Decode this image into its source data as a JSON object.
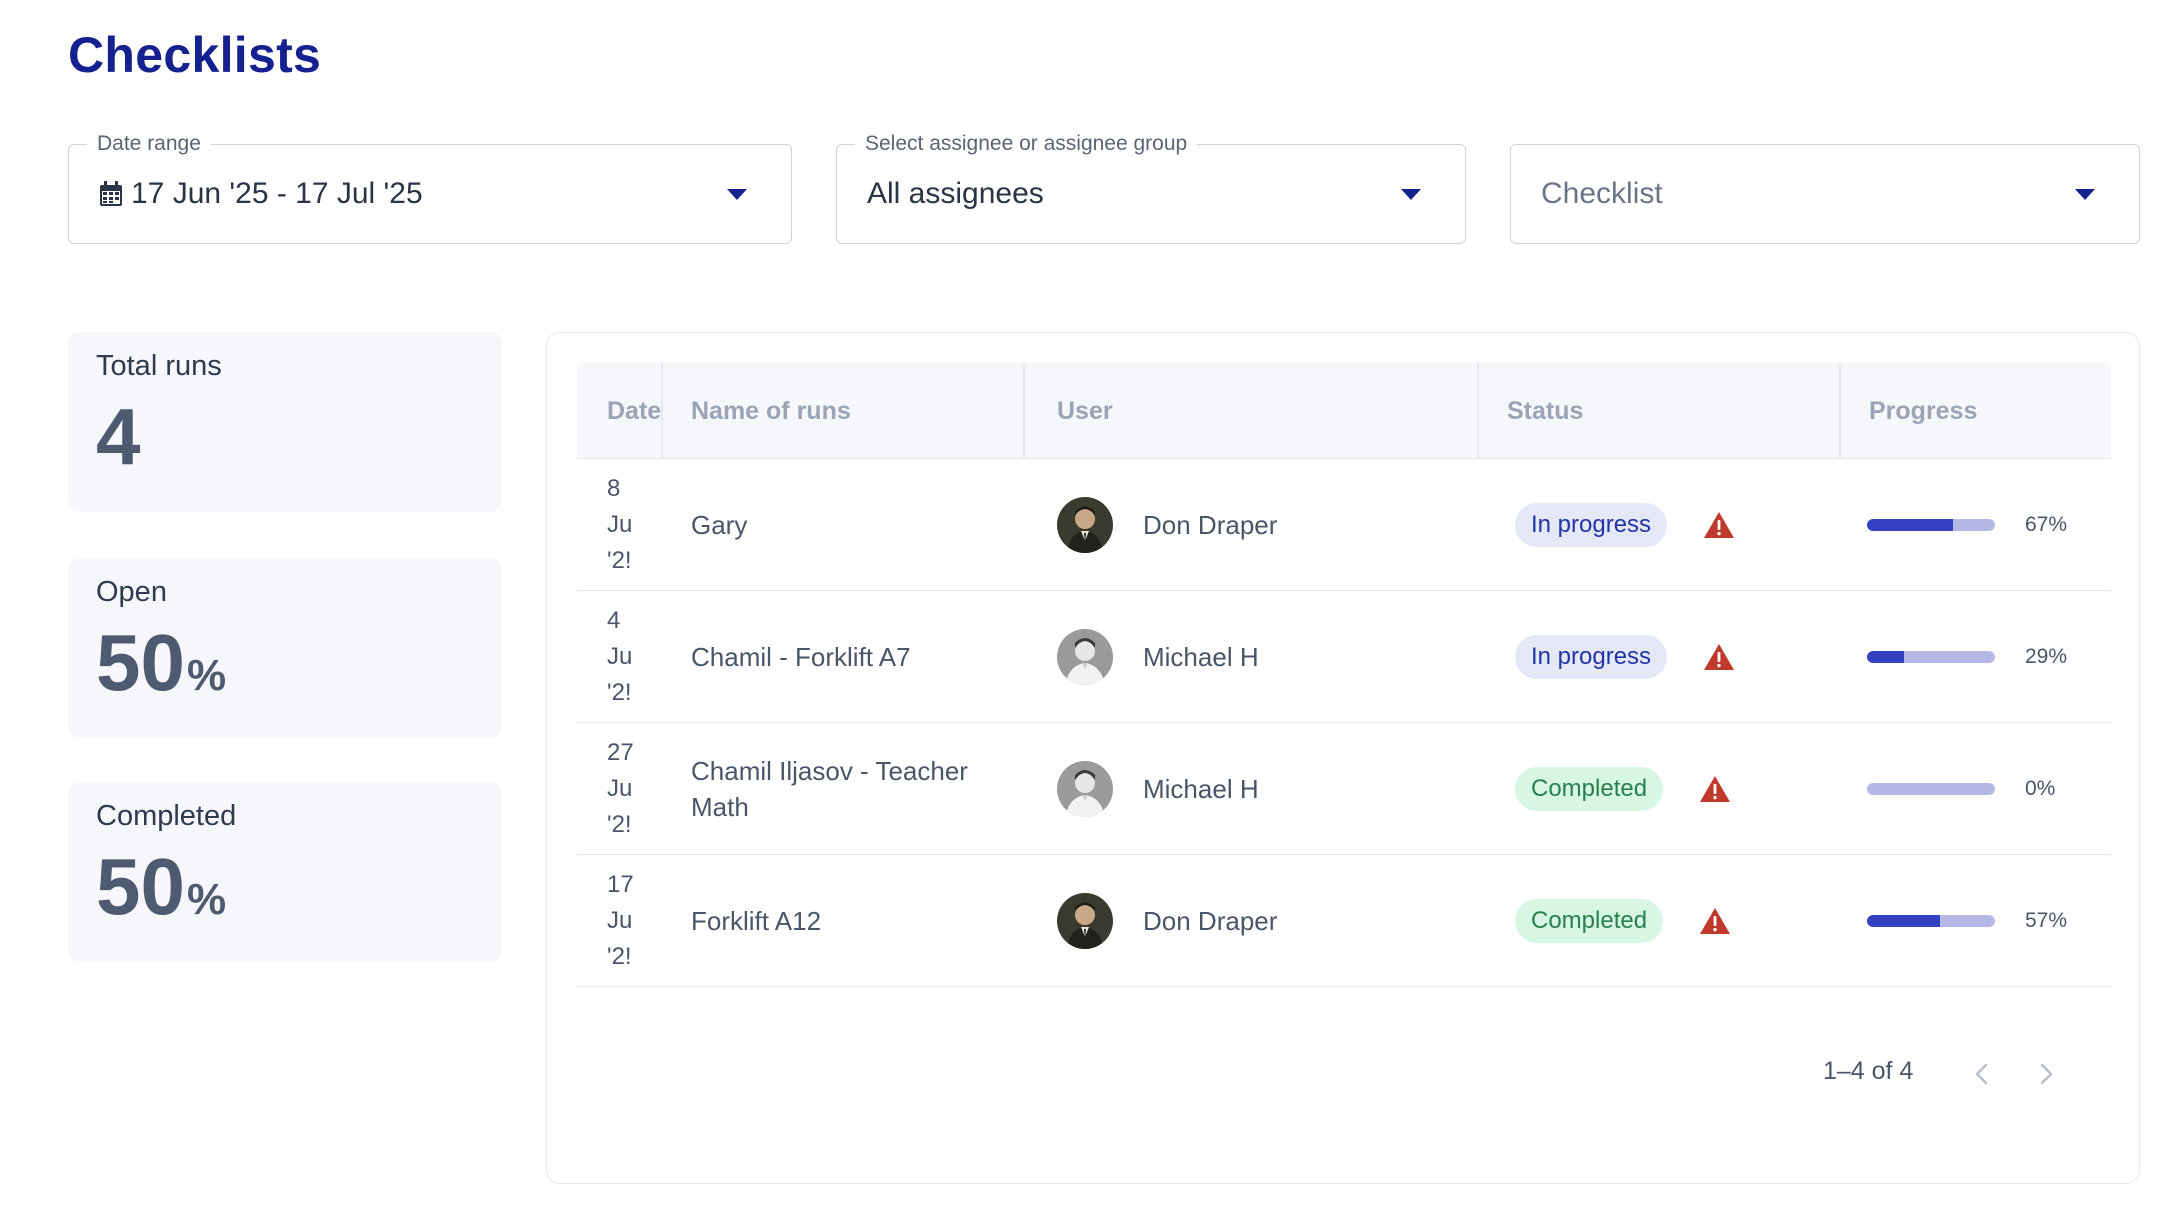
{
  "page": {
    "title": "Checklists"
  },
  "filters": {
    "date_range": {
      "label": "Date range",
      "value": "17 Jun '25 - 17 Jul '25",
      "icon": "calendar-icon"
    },
    "assignee": {
      "label": "Select assignee or assignee group",
      "value": "All assignees"
    },
    "checklist": {
      "placeholder": "Checklist"
    }
  },
  "stats": [
    {
      "label": "Total runs",
      "value": "4",
      "unit": ""
    },
    {
      "label": "Open",
      "value": "50",
      "unit": "%"
    },
    {
      "label": "Completed",
      "value": "50",
      "unit": "%"
    }
  ],
  "table": {
    "columns": [
      "Date",
      "Name of runs",
      "User",
      "Status",
      "Progress"
    ],
    "rows": [
      {
        "date_lines": [
          "8",
          "Ju",
          "'2!"
        ],
        "name": "Gary",
        "user": "Don Draper",
        "avatar": "dark",
        "status": "In progress",
        "status_type": "progress",
        "progress": 67,
        "progress_label": "67%"
      },
      {
        "date_lines": [
          "4",
          "Ju",
          "'2!"
        ],
        "name": "Chamil - Forklift A7",
        "user": "Michael H",
        "avatar": "light",
        "status": "In progress",
        "status_type": "progress",
        "progress": 29,
        "progress_label": "29%"
      },
      {
        "date_lines": [
          "27",
          "Ju",
          "'2!"
        ],
        "name": "Chamil Iljasov - Teacher Math",
        "user": "Michael H",
        "avatar": "light",
        "status": "Completed",
        "status_type": "done",
        "progress": 0,
        "progress_label": "0%"
      },
      {
        "date_lines": [
          "17",
          "Ju",
          "'2!"
        ],
        "name": "Forklift A12",
        "user": "Don Draper",
        "avatar": "dark",
        "status": "Completed",
        "status_type": "done",
        "progress": 57,
        "progress_label": "57%"
      }
    ]
  },
  "pagination": {
    "summary": "1–4 of 4"
  },
  "colors": {
    "title": "#14218f",
    "accent": "#3340c2",
    "warning": "#c0392b",
    "completed_bg": "#d8f6e4",
    "in_progress_bg": "#e4e8f7"
  }
}
